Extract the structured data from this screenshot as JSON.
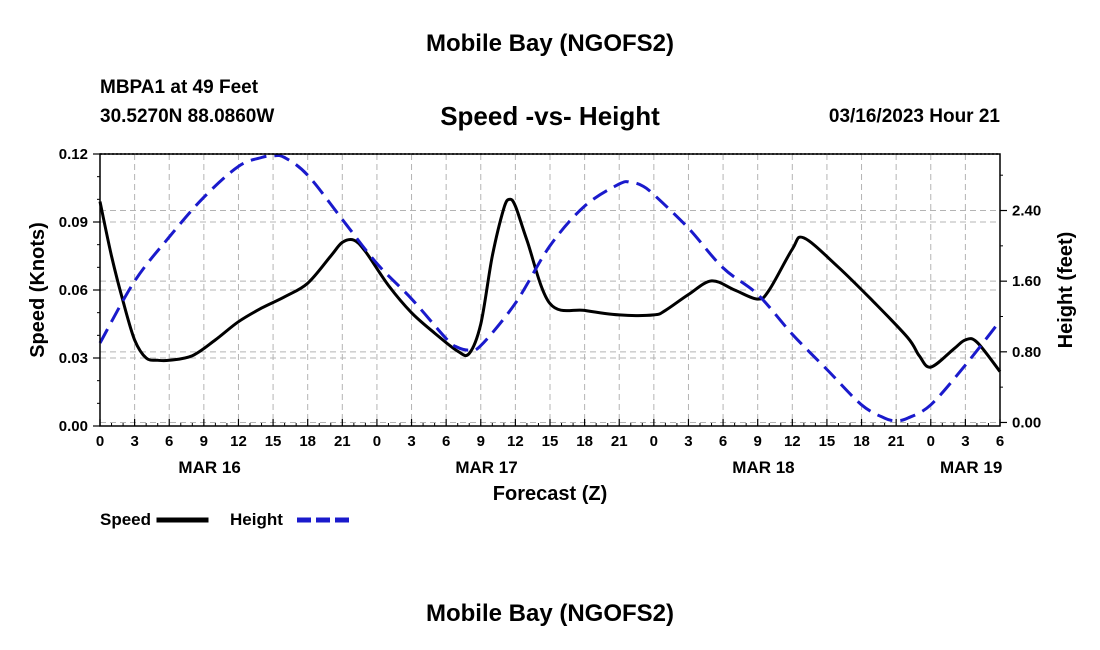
{
  "header": {
    "title": "Mobile Bay (NGOFS2)",
    "station": "MBPA1 at 49 Feet",
    "coordinates": "30.5270N  88.0860W",
    "subtitle": "Speed -vs- Height",
    "datetime": "03/16/2023 Hour 21"
  },
  "footer": {
    "title": "Mobile Bay (NGOFS2)"
  },
  "chart_data": {
    "type": "line",
    "title": "Speed -vs- Height",
    "xlabel": "Forecast (Z)",
    "ylabel": "Speed (Knots)",
    "y2label": "Height (feet)",
    "xlim": [
      0,
      78
    ],
    "ylim": [
      0,
      0.12
    ],
    "y2lim": [
      -0.04,
      3.04
    ],
    "x_ticks": [
      0,
      3,
      6,
      9,
      12,
      15,
      18,
      21,
      24,
      27,
      30,
      33,
      36,
      39,
      42,
      45,
      48,
      51,
      54,
      57,
      60,
      63,
      66,
      69,
      72,
      75,
      78
    ],
    "x_tick_labels": [
      "0",
      "3",
      "6",
      "9",
      "12",
      "15",
      "18",
      "21",
      "0",
      "3",
      "6",
      "9",
      "12",
      "15",
      "18",
      "21",
      "0",
      "3",
      "6",
      "9",
      "12",
      "15",
      "18",
      "21",
      "0",
      "3",
      "6"
    ],
    "date_labels": [
      {
        "x": 9.5,
        "label": "MAR 16"
      },
      {
        "x": 33.5,
        "label": "MAR 17"
      },
      {
        "x": 57.5,
        "label": "MAR 18"
      },
      {
        "x": 75.5,
        "label": "MAR 19"
      }
    ],
    "y_ticks": [
      0,
      0.03,
      0.06,
      0.09,
      0.12
    ],
    "y_tick_labels": [
      "0.00",
      "0.03",
      "0.06",
      "0.09",
      "0.12"
    ],
    "y2_ticks": [
      0,
      0.8,
      1.6,
      2.4
    ],
    "y2_tick_labels": [
      "0.00",
      "0.80",
      "1.60",
      "2.40"
    ],
    "grid": true,
    "series": [
      {
        "name": "Speed",
        "axis": "left",
        "color": "#000000",
        "style": "solid",
        "x": [
          0,
          1,
          2,
          3,
          4,
          5,
          6,
          8,
          10,
          12,
          14,
          16,
          18,
          20,
          21,
          22,
          23,
          25,
          27,
          29,
          31,
          32,
          33,
          34,
          35,
          35.5,
          36,
          37,
          39,
          42,
          45,
          48,
          49,
          51,
          53,
          55,
          57,
          58,
          60,
          61,
          64,
          67,
          70,
          71,
          72,
          74,
          75,
          76,
          78
        ],
        "values": [
          0.099,
          0.075,
          0.055,
          0.038,
          0.03,
          0.029,
          0.029,
          0.031,
          0.038,
          0.046,
          0.052,
          0.057,
          0.063,
          0.075,
          0.081,
          0.082,
          0.077,
          0.062,
          0.05,
          0.041,
          0.033,
          0.032,
          0.045,
          0.075,
          0.096,
          0.1,
          0.097,
          0.082,
          0.054,
          0.051,
          0.049,
          0.049,
          0.051,
          0.058,
          0.064,
          0.06,
          0.056,
          0.06,
          0.078,
          0.083,
          0.07,
          0.055,
          0.039,
          0.031,
          0.026,
          0.034,
          0.038,
          0.037,
          0.024
        ]
      },
      {
        "name": "Height",
        "axis": "right",
        "color": "#1a1acc",
        "style": "dashed",
        "x": [
          0,
          3,
          6,
          9,
          12,
          14,
          15,
          16,
          18,
          21,
          24,
          27,
          30,
          31,
          32,
          33,
          36,
          39,
          42,
          45,
          46,
          47,
          48,
          51,
          54,
          57,
          60,
          63,
          66,
          68,
          69,
          70,
          72,
          75,
          78
        ],
        "values": [
          0.9,
          1.6,
          2.1,
          2.55,
          2.9,
          3.0,
          3.02,
          3.0,
          2.8,
          2.3,
          1.8,
          1.4,
          0.95,
          0.85,
          0.82,
          0.87,
          1.35,
          2.0,
          2.45,
          2.7,
          2.72,
          2.68,
          2.58,
          2.2,
          1.75,
          1.45,
          1.0,
          0.6,
          0.2,
          0.05,
          0.02,
          0.05,
          0.2,
          0.65,
          1.15
        ]
      }
    ],
    "legend": {
      "placement": "bottom-left",
      "entries": [
        {
          "label": "Speed",
          "color": "#000000",
          "style": "solid"
        },
        {
          "label": "Height",
          "color": "#1a1acc",
          "style": "dashed"
        }
      ]
    }
  }
}
